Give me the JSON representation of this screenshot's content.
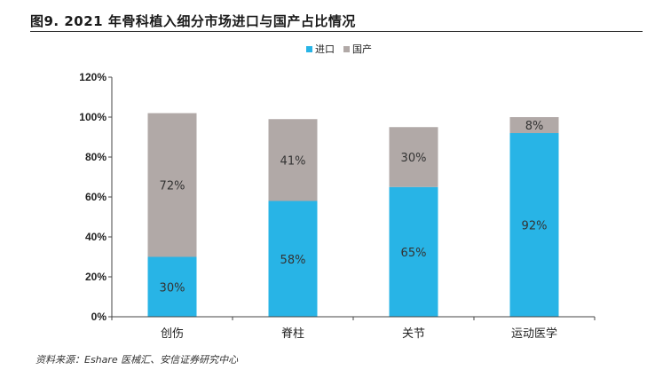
{
  "title": "图9. 2021 年骨科植入细分市场进口与国产占比情况",
  "source": "资料来源：Eshare 医械汇、安信证券研究中心",
  "chart_data": {
    "type": "bar",
    "stacked": true,
    "categories": [
      "创伤",
      "脊柱",
      "关节",
      "运动医学"
    ],
    "series": [
      {
        "name": "进口",
        "values": [
          30,
          58,
          65,
          92
        ],
        "labels": [
          "30%",
          "58%",
          "65%",
          "92%"
        ],
        "color": "#28b4e6"
      },
      {
        "name": "国产",
        "values": [
          72,
          41,
          30,
          8
        ],
        "labels": [
          "72%",
          "41%",
          "30%",
          "8%"
        ],
        "color": "#b1a9a7"
      }
    ],
    "ylim": [
      0,
      120
    ],
    "yticks": [
      "0%",
      "20%",
      "40%",
      "60%",
      "80%",
      "100%",
      "120%"
    ],
    "legend_position": "top-center",
    "grid": false
  }
}
